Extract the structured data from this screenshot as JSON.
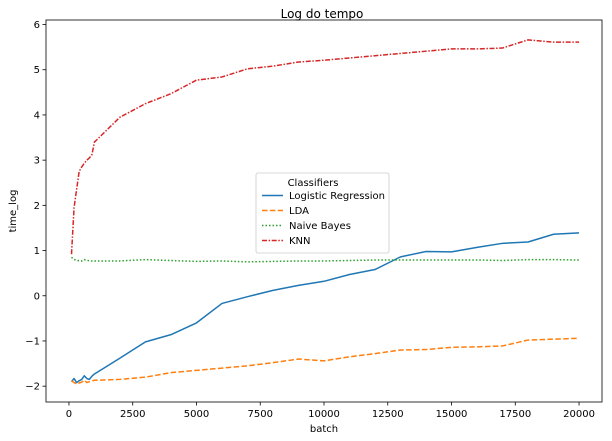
{
  "chart_data": {
    "type": "line",
    "title": "Log do tempo",
    "xlabel": "batch",
    "ylabel": "time_log",
    "xlim": [
      -900,
      20900
    ],
    "ylim": [
      -2.35,
      6.1
    ],
    "xticks": [
      0,
      2500,
      5000,
      7500,
      10000,
      12500,
      15000,
      17500,
      20000
    ],
    "xtick_labels": [
      "0",
      "2500",
      "5000",
      "7500",
      "10000",
      "12500",
      "15000",
      "17500",
      "20000"
    ],
    "yticks": [
      -2,
      -1,
      0,
      1,
      2,
      3,
      4,
      5,
      6
    ],
    "ytick_labels": [
      "−2",
      "−1",
      "0",
      "1",
      "2",
      "3",
      "4",
      "5",
      "6"
    ],
    "grid": false,
    "legend": {
      "title": "Classifiers",
      "placement": "center"
    },
    "series": [
      {
        "name": "Logistic Regression",
        "color": "#1f77b4",
        "dash": "solid",
        "x": [
          100,
          200,
          300,
          400,
          500,
          600,
          700,
          800,
          900,
          1000,
          2000,
          3000,
          4000,
          5000,
          6000,
          7000,
          8000,
          9000,
          10000,
          11000,
          12000,
          13000,
          14000,
          15000,
          16000,
          17000,
          18000,
          19000,
          20000
        ],
        "y": [
          -1.9,
          -1.83,
          -1.92,
          -1.88,
          -1.85,
          -1.77,
          -1.83,
          -1.85,
          -1.78,
          -1.73,
          -1.38,
          -1.02,
          -0.86,
          -0.6,
          -0.17,
          -0.02,
          0.12,
          0.23,
          0.32,
          0.47,
          0.58,
          0.86,
          0.98,
          0.97,
          1.07,
          1.16,
          1.19,
          1.36,
          1.39
        ]
      },
      {
        "name": "LDA",
        "color": "#ff7f0e",
        "dash": "dashed",
        "x": [
          100,
          200,
          300,
          400,
          500,
          600,
          700,
          800,
          900,
          1000,
          2000,
          3000,
          4000,
          5000,
          6000,
          7000,
          8000,
          9000,
          10000,
          11000,
          12000,
          13000,
          14000,
          15000,
          16000,
          17000,
          18000,
          19000,
          20000
        ],
        "y": [
          -1.88,
          -1.92,
          -1.95,
          -1.93,
          -1.91,
          -1.87,
          -1.92,
          -1.9,
          -1.88,
          -1.87,
          -1.85,
          -1.8,
          -1.7,
          -1.65,
          -1.6,
          -1.55,
          -1.48,
          -1.4,
          -1.44,
          -1.35,
          -1.28,
          -1.2,
          -1.19,
          -1.14,
          -1.13,
          -1.11,
          -0.98,
          -0.96,
          -0.94
        ]
      },
      {
        "name": "Naive Bayes",
        "color": "#2ca02c",
        "dash": "dotted",
        "x": [
          100,
          200,
          300,
          400,
          500,
          600,
          700,
          800,
          900,
          1000,
          2000,
          3000,
          4000,
          5000,
          6000,
          7000,
          8000,
          9000,
          10000,
          11000,
          12000,
          13000,
          14000,
          15000,
          16000,
          17000,
          18000,
          19000,
          20000
        ],
        "y": [
          0.85,
          0.8,
          0.79,
          0.77,
          0.77,
          0.8,
          0.79,
          0.77,
          0.77,
          0.77,
          0.77,
          0.8,
          0.78,
          0.76,
          0.77,
          0.75,
          0.76,
          0.77,
          0.77,
          0.78,
          0.79,
          0.79,
          0.79,
          0.79,
          0.79,
          0.78,
          0.8,
          0.8,
          0.79
        ]
      },
      {
        "name": "KNN",
        "color": "#d62728",
        "dash": "dashdot",
        "x": [
          100,
          200,
          300,
          400,
          500,
          600,
          700,
          800,
          900,
          1000,
          2000,
          3000,
          4000,
          5000,
          6000,
          7000,
          8000,
          9000,
          10000,
          11000,
          12000,
          13000,
          14000,
          15000,
          16000,
          17000,
          18000,
          19000,
          20000
        ],
        "y": [
          0.92,
          1.95,
          2.35,
          2.75,
          2.85,
          2.93,
          3.0,
          3.05,
          3.12,
          3.4,
          3.95,
          4.25,
          4.47,
          4.77,
          4.84,
          5.02,
          5.08,
          5.17,
          5.21,
          5.26,
          5.31,
          5.36,
          5.41,
          5.46,
          5.46,
          5.48,
          5.66,
          5.61,
          5.61
        ]
      }
    ]
  }
}
